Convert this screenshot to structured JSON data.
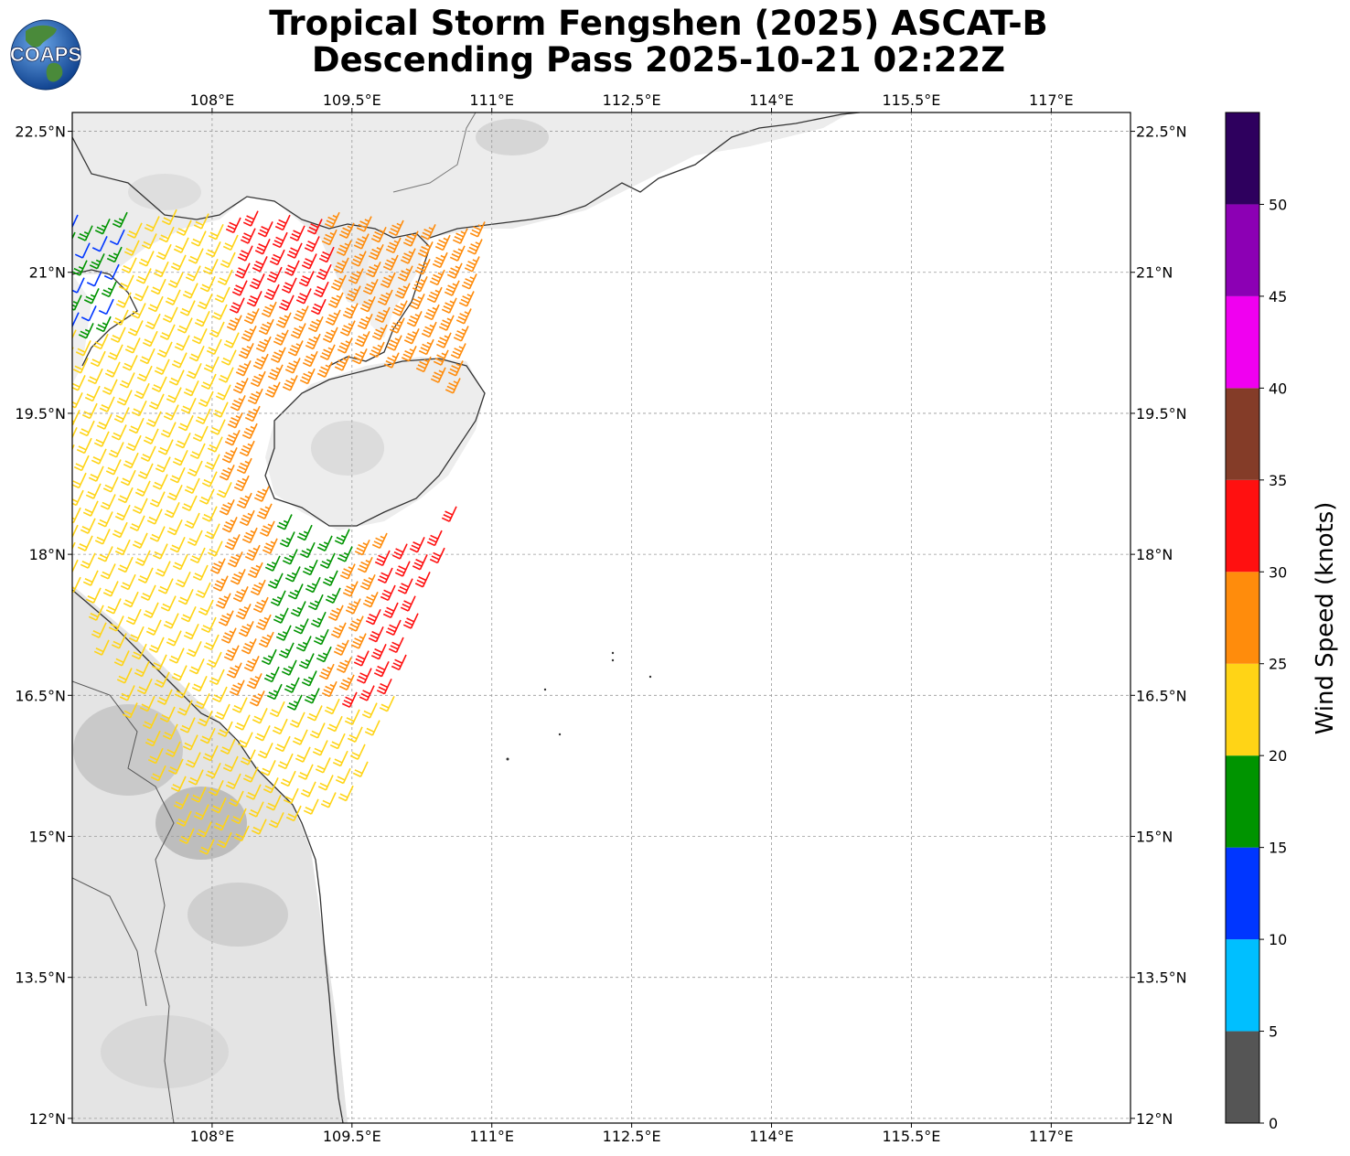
{
  "title": {
    "line1": "Tropical Storm Fengshen (2025) ASCAT-B",
    "line2": "Descending Pass 2025-10-21 02:22Z"
  },
  "logo": {
    "text": "COAPS"
  },
  "map": {
    "lon_labels": [
      "108°E",
      "109.5°E",
      "111°E",
      "112.5°E",
      "114°E",
      "115.5°E",
      "117°E"
    ],
    "lat_labels": [
      "22.5°N",
      "21°N",
      "19.5°N",
      "18°N",
      "16.5°N",
      "15°N",
      "13.5°N",
      "12°N"
    ],
    "lon_range": [
      106.5,
      117.85
    ],
    "lat_range": [
      11.95,
      22.7
    ],
    "gridlines": true
  },
  "colorbar": {
    "label": "Wind Speed (knots)",
    "tick_labels": [
      "0",
      "5",
      "10",
      "15",
      "20",
      "25",
      "30",
      "35",
      "40",
      "45",
      "50"
    ],
    "bins": [
      {
        "from": 0,
        "to": 5,
        "color": "#555555"
      },
      {
        "from": 5,
        "to": 10,
        "color": "#00bfff"
      },
      {
        "from": 10,
        "to": 15,
        "color": "#0036ff"
      },
      {
        "from": 15,
        "to": 20,
        "color": "#009400"
      },
      {
        "from": 20,
        "to": 25,
        "color": "#ffd416"
      },
      {
        "from": 25,
        "to": 30,
        "color": "#ff8c0c"
      },
      {
        "from": 30,
        "to": 35,
        "color": "#ff1010"
      },
      {
        "from": 35,
        "to": 40,
        "color": "#843c28"
      },
      {
        "from": 40,
        "to": 45,
        "color": "#f000f0"
      },
      {
        "from": 45,
        "to": 50,
        "color": "#8c00b4"
      },
      {
        "from": 50,
        "to": 55,
        "color": "#2e005e"
      }
    ]
  }
}
